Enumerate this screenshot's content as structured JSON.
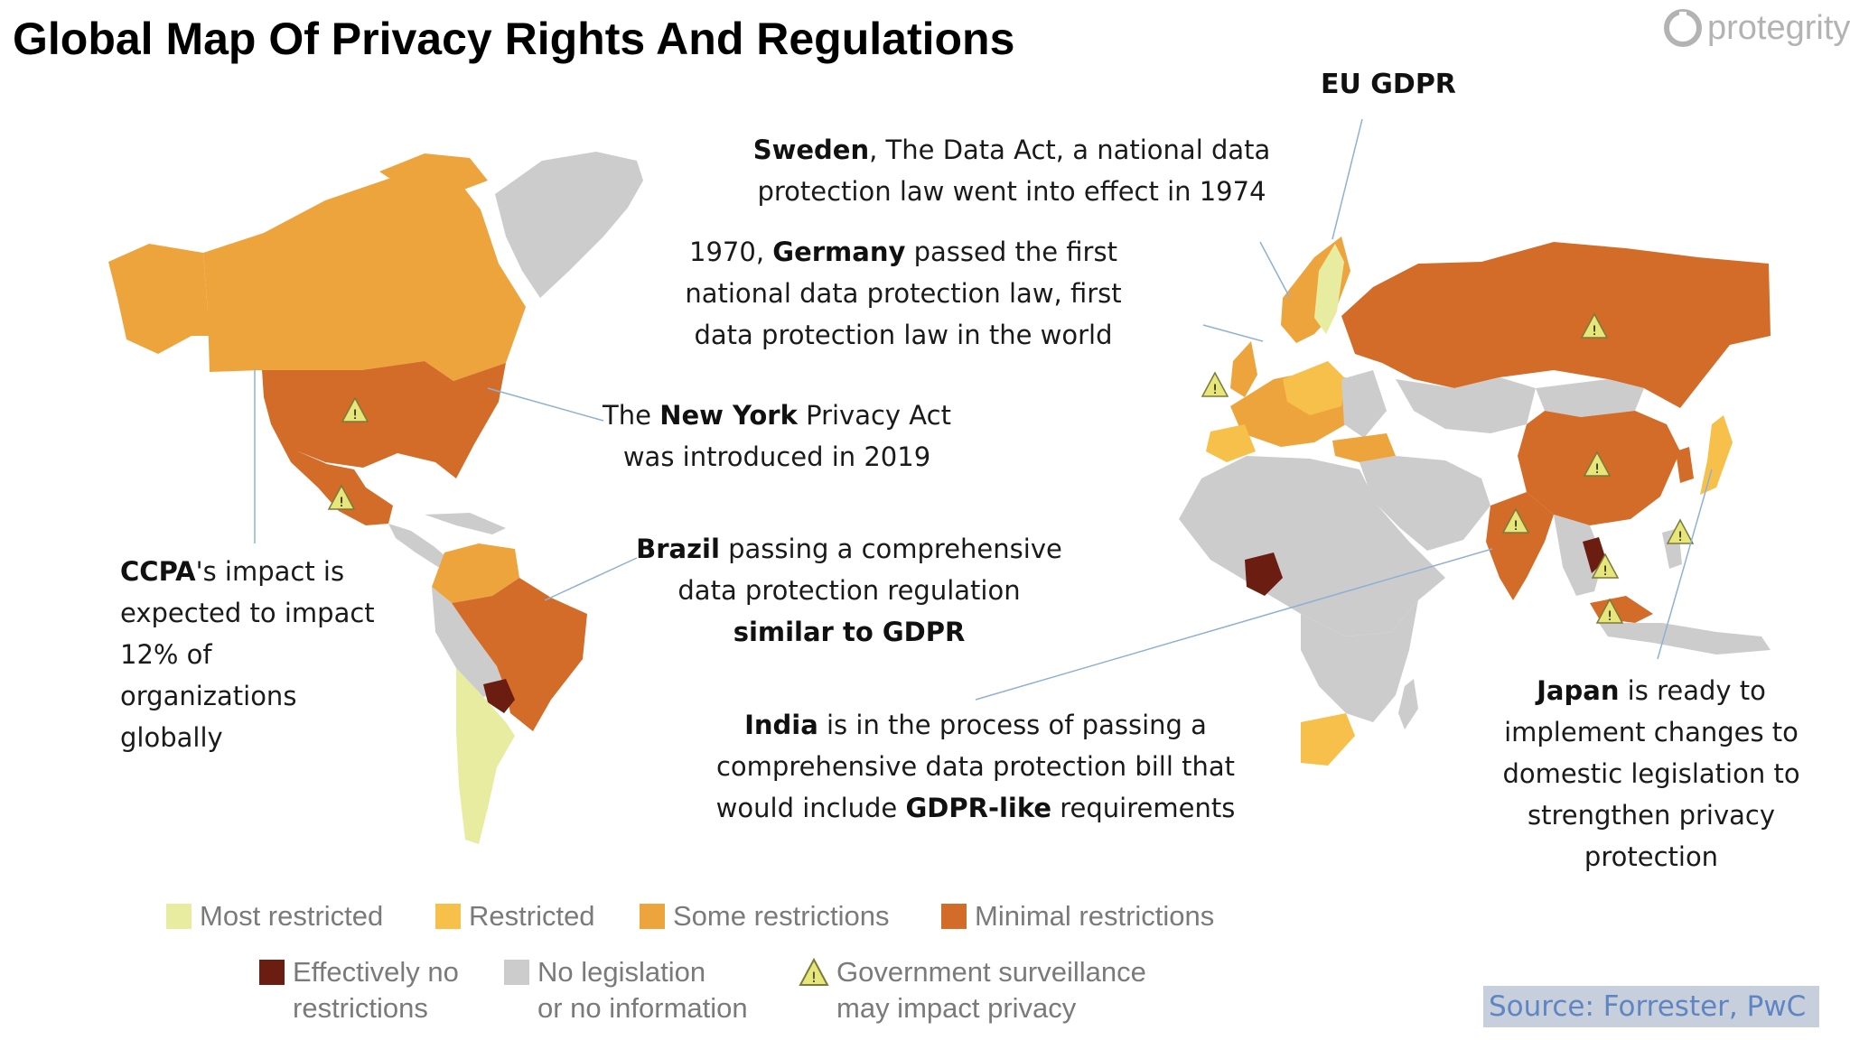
{
  "title": "Global Map Of Privacy Rights And Regulations",
  "logo": {
    "text": "protegrity"
  },
  "labels": {
    "eu_gdpr": "EU GDPR",
    "sweden": {
      "bold": "Sweden",
      "rest1": ", The Data Act, a national data",
      "line2": "protection law went into effect in 1974"
    },
    "germany": {
      "pre": "1970, ",
      "bold": "Germany",
      "rest1": " passed the first",
      "line2": "national data protection law, first",
      "line3": "data protection law in the world"
    },
    "newyork": {
      "pre": "The ",
      "bold": "New York",
      "rest1": " Privacy Act",
      "line2": "was introduced in 2019"
    },
    "brazil": {
      "bold": "Brazil",
      "rest1": " passing a comprehensive",
      "line2": "data protection regulation",
      "line3": "similar to GDPR"
    },
    "ccpa": {
      "bold": "CCPA",
      "rest1": "'s impact is",
      "line2": "expected to impact",
      "line3": "12% of",
      "line4": "organizations",
      "line5": "globally"
    },
    "india": {
      "bold": "India",
      "rest1": " is in the process of passing a",
      "line2": "comprehensive data protection bill that",
      "pre3": "would include ",
      "bold3": "GDPR-like",
      "rest3": " requirements"
    },
    "japan": {
      "bold": "Japan",
      "rest1": " is ready to",
      "line2": "implement changes to",
      "line3": "domestic legislation to",
      "line4": "strengthen privacy",
      "line5": "protection"
    }
  },
  "legend": {
    "most_restricted": "Most restricted",
    "restricted": "Restricted",
    "some_restrictions": "Some restrictions",
    "minimal_restrictions": "Minimal restrictions",
    "effectively_no_1": "Effectively no",
    "effectively_no_2": "restrictions",
    "no_legislation_1": "No legislation",
    "no_legislation_2": "or no information",
    "surveillance_1": "Government surveillance",
    "surveillance_2": "may impact privacy"
  },
  "colors": {
    "most_restricted": "#e8eca0",
    "restricted": "#f6c04a",
    "some_restrictions": "#eda43d",
    "minimal_restrictions": "#d36c28",
    "effectively_no": "#6b1d12",
    "no_legislation": "#cccccc",
    "warning": "#e6e67a"
  },
  "source": "Source: Forrester, PwC"
}
